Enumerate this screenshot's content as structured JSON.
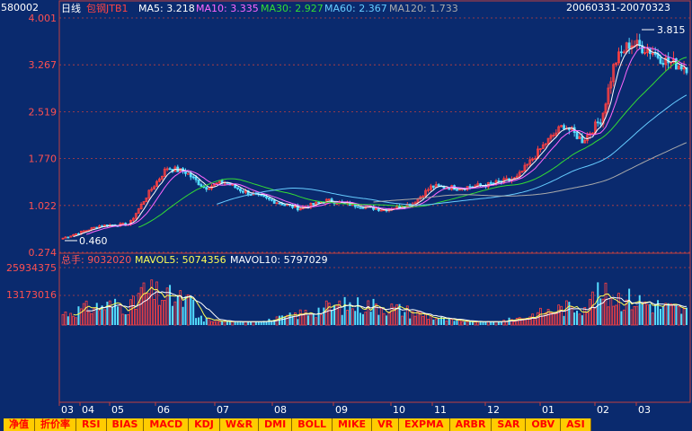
{
  "header": {
    "code": "580002",
    "period": "日线",
    "name": "包钢JTB1",
    "date_range": "20060331-20070323",
    "ma": [
      {
        "label": "MA5: 3.218",
        "color": "#ffffff"
      },
      {
        "label": "MA10: 3.335",
        "color": "#ff66ff"
      },
      {
        "label": "MA30: 2.927",
        "color": "#33dd33"
      },
      {
        "label": "MA60: 2.367",
        "color": "#66ccff"
      },
      {
        "label": "MA120: 1.733",
        "color": "#aaaaaa"
      }
    ]
  },
  "volume_header": {
    "total_label": "总手: 9032020",
    "mavol5": "MAVOL5: 5074356",
    "mavol10": "MAVOL10: 5797029"
  },
  "price_axis": [
    "4.001",
    "3.267",
    "2.519",
    "1.770",
    "1.022",
    "0.274"
  ],
  "volume_axis": [
    "25934375",
    "13173016"
  ],
  "annotations": {
    "high": "3.815",
    "low": "0.460"
  },
  "months": [
    "03",
    "04",
    "05",
    "06",
    "07",
    "08",
    "09",
    "10",
    "11",
    "12",
    "01",
    "02",
    "03"
  ],
  "tabs": [
    "净值",
    "折价率",
    "RSI",
    "BIAS",
    "MACD",
    "KDJ",
    "W&R",
    "DMI",
    "BOLL",
    "MIKE",
    "VR",
    "EXPMA",
    "ARBR",
    "SAR",
    "OBV",
    "ASI"
  ],
  "colors": {
    "bg": "#0a2a6e",
    "grid": "#c04040",
    "axis_text": "#ff5050",
    "up": "#ff4040",
    "down": "#55ddff",
    "tab_bg": "#ffcc00",
    "tab_text": "#ff0000"
  },
  "chart_data": {
    "type": "candlestick",
    "price_range": [
      0.274,
      4.001
    ],
    "high": 3.815,
    "low": 0.46,
    "ma_latest": {
      "MA5": 3.218,
      "MA10": 3.335,
      "MA30": 2.927,
      "MA60": 2.367,
      "MA120": 1.733
    },
    "volume_range": [
      0,
      25934375
    ],
    "latest_volume": 9032020
  }
}
